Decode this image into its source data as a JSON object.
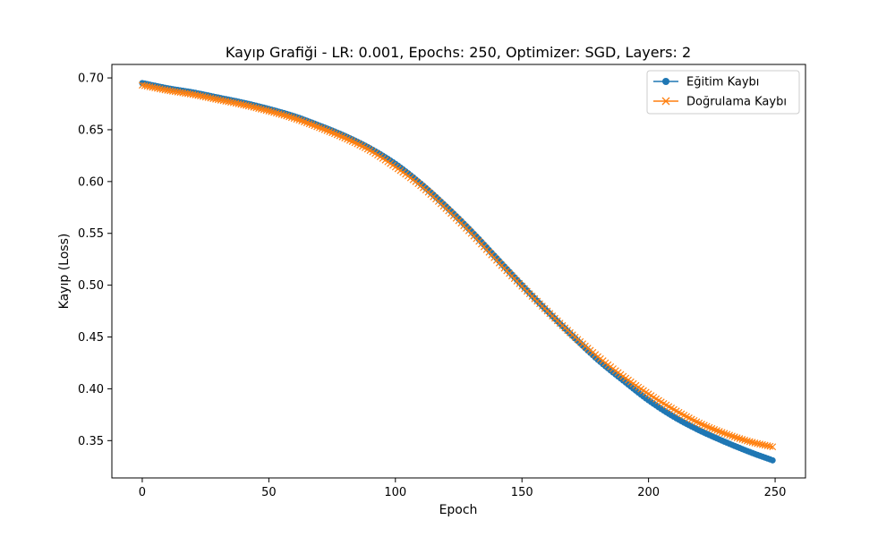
{
  "chart_data": {
    "type": "line",
    "title": "Kayıp Grafiği - LR: 0.001, Epochs: 250, Optimizer: SGD, Layers: 2",
    "xlabel": "Epoch",
    "ylabel": "Kayıp (Loss)",
    "xlim": [
      -12,
      262
    ],
    "ylim": [
      0.314,
      0.713
    ],
    "xticks": [
      0,
      50,
      100,
      150,
      200,
      250
    ],
    "yticks": [
      0.35,
      0.4,
      0.45,
      0.5,
      0.55,
      0.6,
      0.65,
      0.7
    ],
    "ytick_labels": [
      "0.35",
      "0.40",
      "0.45",
      "0.50",
      "0.55",
      "0.60",
      "0.65",
      "0.70"
    ],
    "legend_position": "upper right",
    "x": [
      0,
      10,
      20,
      30,
      40,
      50,
      60,
      70,
      80,
      90,
      100,
      110,
      120,
      130,
      140,
      150,
      160,
      170,
      180,
      190,
      200,
      210,
      220,
      230,
      240,
      249
    ],
    "series": [
      {
        "name": "Eğitim Kaybı",
        "color": "#1f77b4",
        "marker": "circle",
        "values": [
          0.695,
          0.69,
          0.686,
          0.681,
          0.676,
          0.67,
          0.663,
          0.654,
          0.644,
          0.632,
          0.617,
          0.598,
          0.576,
          0.552,
          0.526,
          0.5,
          0.475,
          0.451,
          0.428,
          0.408,
          0.389,
          0.373,
          0.36,
          0.349,
          0.339,
          0.331
        ]
      },
      {
        "name": "Doğrulama Kaybı",
        "color": "#ff7f0e",
        "marker": "x",
        "values": [
          0.693,
          0.688,
          0.684,
          0.679,
          0.674,
          0.668,
          0.661,
          0.652,
          0.642,
          0.63,
          0.614,
          0.596,
          0.574,
          0.55,
          0.524,
          0.499,
          0.475,
          0.452,
          0.431,
          0.412,
          0.395,
          0.38,
          0.367,
          0.357,
          0.349,
          0.344
        ]
      }
    ]
  }
}
